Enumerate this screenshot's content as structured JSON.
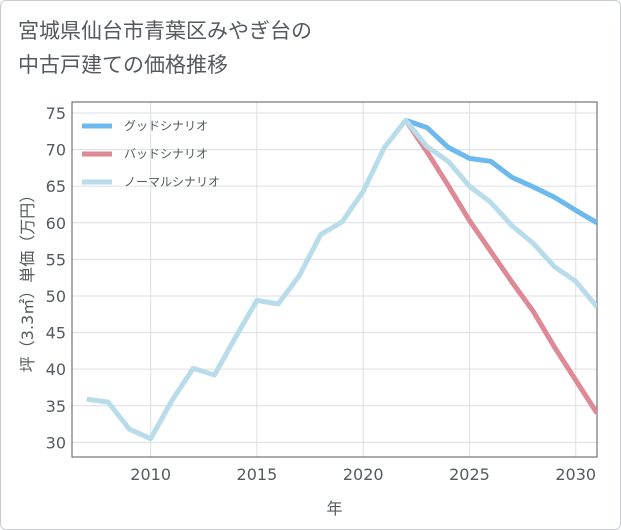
{
  "title": {
    "line1": "宮城県仙台市青葉区みやぎ台の",
    "line2": "中古戸建ての価格推移"
  },
  "colors": {
    "good": "#6cb9ee",
    "bad": "#de8a96",
    "normal": "#b9dcea",
    "grid": "#dcdfe3",
    "axis": "#555a60"
  },
  "chart_data": {
    "type": "line",
    "title": "宮城県仙台市青葉区みやぎ台の中古戸建ての価格推移",
    "xlabel": "年",
    "ylabel": "坪（3.3㎡）単価（万円）",
    "xlim": [
      2006.3,
      2031
    ],
    "ylim": [
      28,
      76.5
    ],
    "xticks": [
      2010,
      2015,
      2020,
      2025,
      2030
    ],
    "yticks": [
      30,
      35,
      40,
      45,
      50,
      55,
      60,
      65,
      70,
      75
    ],
    "grid": true,
    "legend_position": "top-left",
    "series": [
      {
        "key": "good",
        "name": "グッドシナリオ",
        "x": [
          2022,
          2023,
          2024,
          2025,
          2026,
          2027,
          2028,
          2029,
          2030,
          2031
        ],
        "values": [
          74,
          73,
          70.3,
          68.8,
          68.4,
          66.2,
          64.9,
          63.5,
          61.7,
          60
        ]
      },
      {
        "key": "bad",
        "name": "バッドシナリオ",
        "x": [
          2022,
          2023,
          2024,
          2025,
          2026,
          2027,
          2028,
          2029,
          2030,
          2031
        ],
        "values": [
          74,
          69.7,
          65.1,
          60.3,
          56.1,
          51.9,
          47.9,
          43,
          38.5,
          34
        ]
      },
      {
        "key": "normal",
        "name": "ノーマルシナリオ",
        "x": [
          2007,
          2008,
          2009,
          2010,
          2011,
          2012,
          2013,
          2014,
          2015,
          2016,
          2017,
          2018,
          2019,
          2020,
          2021,
          2022,
          2023,
          2024,
          2025,
          2026,
          2027,
          2028,
          2029,
          2030,
          2031
        ],
        "values": [
          35.9,
          35.5,
          31.8,
          30.5,
          35.7,
          40.1,
          39.2,
          44.4,
          49.4,
          48.9,
          52.8,
          58.4,
          60.1,
          64.3,
          70.3,
          74,
          70.4,
          68.4,
          65,
          62.8,
          59.6,
          57.2,
          54,
          52,
          48.5
        ]
      }
    ]
  }
}
